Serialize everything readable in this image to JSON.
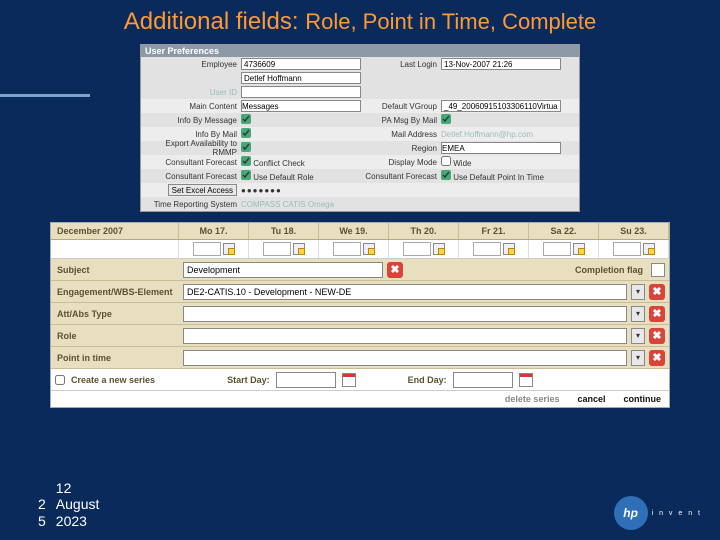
{
  "title_main": "Additional fields:",
  "title_sub": "Role, Point in Time, Complete",
  "prefs": {
    "panel_title": "User Preferences",
    "employee_lbl": "Employee",
    "employee_id": "4736609",
    "employee_name": "Detlef Hoffmann",
    "last_login_lbl": "Last Login",
    "last_login_val": "13-Nov-2007 21:26",
    "user_id_lbl": "User ID",
    "main_content_lbl": "Main Content",
    "main_content_val": "Messages",
    "default_vgroup_lbl": "Default VGroup",
    "default_vgroup_val": "_49_20060915103306110Virtual",
    "info_by_message_lbl": "Info By Message",
    "pa_msg_lbl": "PA Msg By Mail",
    "info_by_mail_lbl": "Info By Mail",
    "mail_addr_lbl": "Mail Address",
    "mail_addr_val": "Detlef.Hoffmann@hp.com",
    "export_lbl": "Export Availability to RMMP",
    "region_lbl": "Region",
    "region_val": "EMEA",
    "cons_fc_lbl": "Consultant Forecast",
    "conflict_chk_lbl": "Conflict Check",
    "display_mode_lbl": "Display Mode",
    "display_mode_val": "Wide",
    "cons_fc2_lbl": "Consultant Forecast",
    "use_def_role_lbl": "Use Default Role",
    "use_def_pit_lbl": "Use Default Point In Time",
    "excel_btn": "Set Excel Access",
    "excel_dots": "●●●●●●●",
    "trs_lbl": "Time Reporting System",
    "trs_opts": "COMPASS   CATIS   Omega"
  },
  "sheet": {
    "month": "December 2007",
    "days": [
      "Mo 17.",
      "Tu 18.",
      "We 19.",
      "Th 20.",
      "Fr 21.",
      "Sa 22.",
      "Su 23."
    ],
    "subject_lbl": "Subject",
    "subject_val": "Development",
    "completion_lbl": "Completion flag",
    "eng_lbl": "Engagement/WBS-Element",
    "eng_val": "DE2-CATIS.10 - Development - NEW-DE",
    "att_lbl": "Att/Abs Type",
    "role_lbl": "Role",
    "pit_lbl": "Point in time",
    "series_lbl": "Create a new series",
    "start_lbl": "Start Day:",
    "end_lbl": "End Day:",
    "delete": "delete series",
    "cancel": "cancel",
    "continue": "continue"
  },
  "footer": {
    "slide_no": "25",
    "date_day": "12",
    "date_rest1": "August",
    "date_rest2": "2023",
    "hp": "hp",
    "invent": "i n v e n t"
  }
}
